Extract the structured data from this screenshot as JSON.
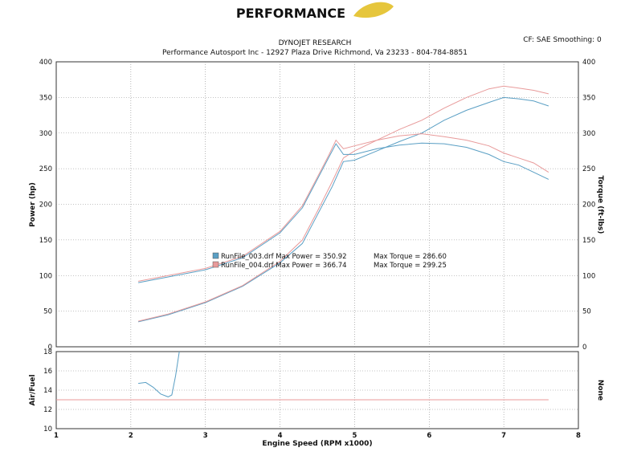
{
  "header": {
    "logo_text": "PERFORMANCE",
    "line1": "DYNOJET RESEARCH",
    "line2": "Performance Autosport Inc - 12927 Plaza Drive Richmond, Va 23233 - 804-784-8851",
    "settings": "CF: SAE  Smoothing: 0"
  },
  "legend": {
    "entries": [
      {
        "text": "RunFile_003.drf Max Power = 350.92",
        "torque": "Max Torque = 286.60",
        "color": "#5a9fc4"
      },
      {
        "text": "RunFile_004.drf Max Power = 366.74",
        "torque": "Max Torque = 299.25",
        "color": "#e89a9a"
      }
    ]
  },
  "chart_data": [
    {
      "type": "line",
      "xlabel": "",
      "ylabel": "Power (hp)",
      "y2label": "Torque (ft-lbs)",
      "xlim": [
        1,
        8
      ],
      "ylim": [
        0,
        400
      ],
      "y2lim": [
        0,
        400
      ],
      "yticks": [
        0,
        50,
        100,
        150,
        200,
        250,
        300,
        350,
        400
      ],
      "grid": true,
      "series": [
        {
          "name": "RunFile_003.drf Power",
          "color": "#5a9fc4",
          "x": [
            2.1,
            2.5,
            3.0,
            3.5,
            4.0,
            4.3,
            4.5,
            4.7,
            4.85,
            5.0,
            5.3,
            5.6,
            5.9,
            6.2,
            6.5,
            6.8,
            7.0,
            7.2,
            7.4,
            7.6
          ],
          "y": [
            35,
            45,
            62,
            85,
            118,
            145,
            185,
            225,
            260,
            262,
            275,
            288,
            300,
            318,
            332,
            343,
            350,
            348,
            345,
            338
          ]
        },
        {
          "name": "RunFile_004.drf Power",
          "color": "#e89a9a",
          "x": [
            2.1,
            2.5,
            3.0,
            3.5,
            4.0,
            4.3,
            4.5,
            4.7,
            4.85,
            5.0,
            5.3,
            5.6,
            5.9,
            6.2,
            6.5,
            6.8,
            7.0,
            7.2,
            7.4,
            7.6
          ],
          "y": [
            36,
            46,
            63,
            86,
            120,
            150,
            190,
            232,
            265,
            275,
            290,
            305,
            318,
            335,
            350,
            362,
            366,
            363,
            360,
            355
          ]
        },
        {
          "name": "RunFile_003.drf Torque",
          "color": "#5a9fc4",
          "x": [
            2.1,
            2.5,
            3.0,
            3.5,
            4.0,
            4.3,
            4.5,
            4.65,
            4.75,
            4.85,
            5.0,
            5.3,
            5.6,
            5.9,
            6.2,
            6.5,
            6.8,
            7.0,
            7.2,
            7.4,
            7.6
          ],
          "y": [
            90,
            98,
            108,
            125,
            160,
            195,
            235,
            265,
            285,
            270,
            270,
            278,
            283,
            286,
            285,
            280,
            270,
            260,
            255,
            245,
            235
          ]
        },
        {
          "name": "RunFile_004.drf Torque",
          "color": "#e89a9a",
          "x": [
            2.1,
            2.5,
            3.0,
            3.5,
            4.0,
            4.3,
            4.5,
            4.65,
            4.75,
            4.85,
            5.0,
            5.3,
            5.6,
            5.9,
            6.2,
            6.5,
            6.8,
            7.0,
            7.2,
            7.4,
            7.6
          ],
          "y": [
            92,
            100,
            110,
            127,
            162,
            198,
            238,
            268,
            290,
            278,
            282,
            290,
            296,
            299,
            295,
            290,
            282,
            272,
            265,
            258,
            245
          ]
        }
      ]
    },
    {
      "type": "line",
      "xlabel": "Engine Speed (RPM x1000)",
      "ylabel": "Air/Fuel",
      "y2label": "None",
      "xlim": [
        1,
        8
      ],
      "ylim": [
        10,
        18
      ],
      "xticks": [
        1,
        2,
        3,
        4,
        5,
        6,
        7,
        8
      ],
      "yticks": [
        10,
        12,
        14,
        16,
        18
      ],
      "grid": true,
      "series": [
        {
          "name": "RunFile_003.drf Air/Fuel",
          "color": "#5a9fc4",
          "x": [
            2.1,
            2.2,
            2.3,
            2.4,
            2.5,
            2.55,
            2.6,
            2.65
          ],
          "y": [
            14.7,
            14.8,
            14.3,
            13.6,
            13.3,
            13.5,
            15.5,
            18
          ]
        },
        {
          "name": "RunFile_004.drf Air/Fuel",
          "color": "#e89a9a",
          "x": [
            1.0,
            7.6
          ],
          "y": [
            13.0,
            13.0
          ]
        }
      ]
    }
  ]
}
